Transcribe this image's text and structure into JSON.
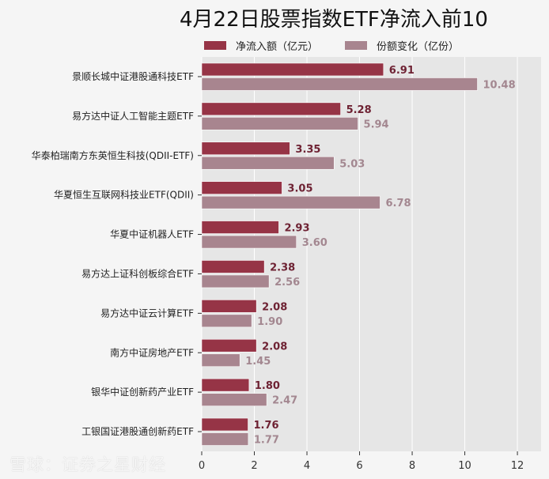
{
  "chart_data": {
    "type": "bar",
    "orientation": "horizontal",
    "title": "4月22日股票指数ETF净流入前10",
    "categories": [
      "景顺长城中证港股通科技ETF",
      "易方达中证人工智能主题ETF",
      "华泰柏瑞南方东英恒生科技(QDII-ETF)",
      "华夏恒生互联网科技业ETF(QDII)",
      "华夏中证机器人ETF",
      "易方达上证科创板综合ETF",
      "易方达中证云计算ETF",
      "南方中证房地产ETF",
      "银华中证创新药产业ETF",
      "工银国证港股通创新药ETF"
    ],
    "series": [
      {
        "name": "净流入额（亿元）",
        "color": "#963446",
        "label_color": "#6e2233",
        "values": [
          6.91,
          5.28,
          3.35,
          3.05,
          2.93,
          2.38,
          2.08,
          2.08,
          1.8,
          1.76
        ]
      },
      {
        "name": "份额变化（亿份）",
        "color": "#a8858f",
        "label_color": "#a38790",
        "values": [
          10.48,
          5.94,
          5.03,
          6.78,
          3.6,
          2.56,
          1.9,
          1.45,
          2.47,
          1.77
        ]
      }
    ],
    "labels": [
      [
        "6.91",
        "5.28",
        "3.35",
        "3.05",
        "2.93",
        "2.38",
        "2.08",
        "2.08",
        "1.80",
        "1.76"
      ],
      [
        "10.48",
        "5.94",
        "5.03",
        "6.78",
        "3.60",
        "2.56",
        "1.90",
        "1.45",
        "2.47",
        "1.77"
      ]
    ],
    "xticks": [
      "0",
      "2",
      "4",
      "6",
      "8",
      "10",
      "12"
    ],
    "xtick_values": [
      0,
      2,
      4,
      6,
      8,
      10,
      12
    ],
    "xlim": [
      0,
      12.9
    ],
    "grid": true,
    "legend": "top",
    "background": "#e6e6e6"
  },
  "watermark": "雪球：证券之星财经"
}
